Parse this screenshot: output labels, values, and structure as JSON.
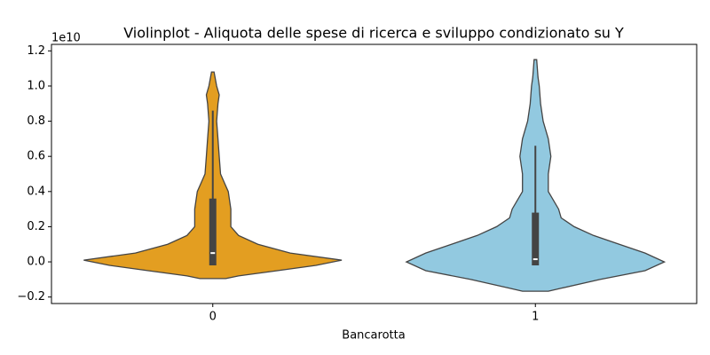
{
  "chart_data": {
    "type": "violin",
    "title": "Violinplot - Aliquota delle spese di ricerca e sviluppo condizionato su Y",
    "xlabel": "Bancarotta",
    "y_offset_label": "1e10",
    "categories": [
      "0",
      "1"
    ],
    "ylim": [
      -0.237,
      1.237
    ],
    "yticks": [
      {
        "value": -0.2,
        "label": "−0.2"
      },
      {
        "value": 0,
        "label": "0.0"
      },
      0.2,
      0.4,
      0.6,
      0.8,
      {
        "value": 1,
        "label": "1.0"
      },
      1.2
    ],
    "series": [
      {
        "color": "#e39e21",
        "density_y": [
          -0.095,
          -0.08,
          -0.05,
          -0.02,
          0.01,
          0.05,
          0.1,
          0.15,
          0.2,
          0.3,
          0.4,
          0.45,
          0.5,
          0.6,
          0.7,
          0.8,
          0.9,
          0.95,
          1.0,
          1.08
        ],
        "density": [
          0.1,
          0.2,
          0.5,
          0.8,
          1.0,
          0.6,
          0.35,
          0.2,
          0.14,
          0.14,
          0.12,
          0.09,
          0.06,
          0.05,
          0.04,
          0.03,
          0.04,
          0.05,
          0.03,
          0.01
        ],
        "whisker_low": -0.02,
        "q1": -0.02,
        "median": 0.05,
        "q3": 0.36,
        "whisker_high": 0.86
      },
      {
        "color": "#92c9e0",
        "density_y": [
          -0.167,
          -0.15,
          -0.1,
          -0.05,
          0.0,
          0.05,
          0.1,
          0.15,
          0.2,
          0.25,
          0.3,
          0.35,
          0.4,
          0.5,
          0.6,
          0.7,
          0.8,
          0.9,
          1.0,
          1.05,
          1.15
        ],
        "density": [
          0.1,
          0.2,
          0.5,
          0.85,
          1.0,
          0.85,
          0.65,
          0.45,
          0.3,
          0.2,
          0.18,
          0.14,
          0.1,
          0.1,
          0.12,
          0.1,
          0.06,
          0.04,
          0.03,
          0.02,
          0.01
        ],
        "whisker_low": -0.02,
        "q1": -0.02,
        "median": 0.015,
        "q3": 0.28,
        "whisker_high": 0.66
      }
    ]
  }
}
